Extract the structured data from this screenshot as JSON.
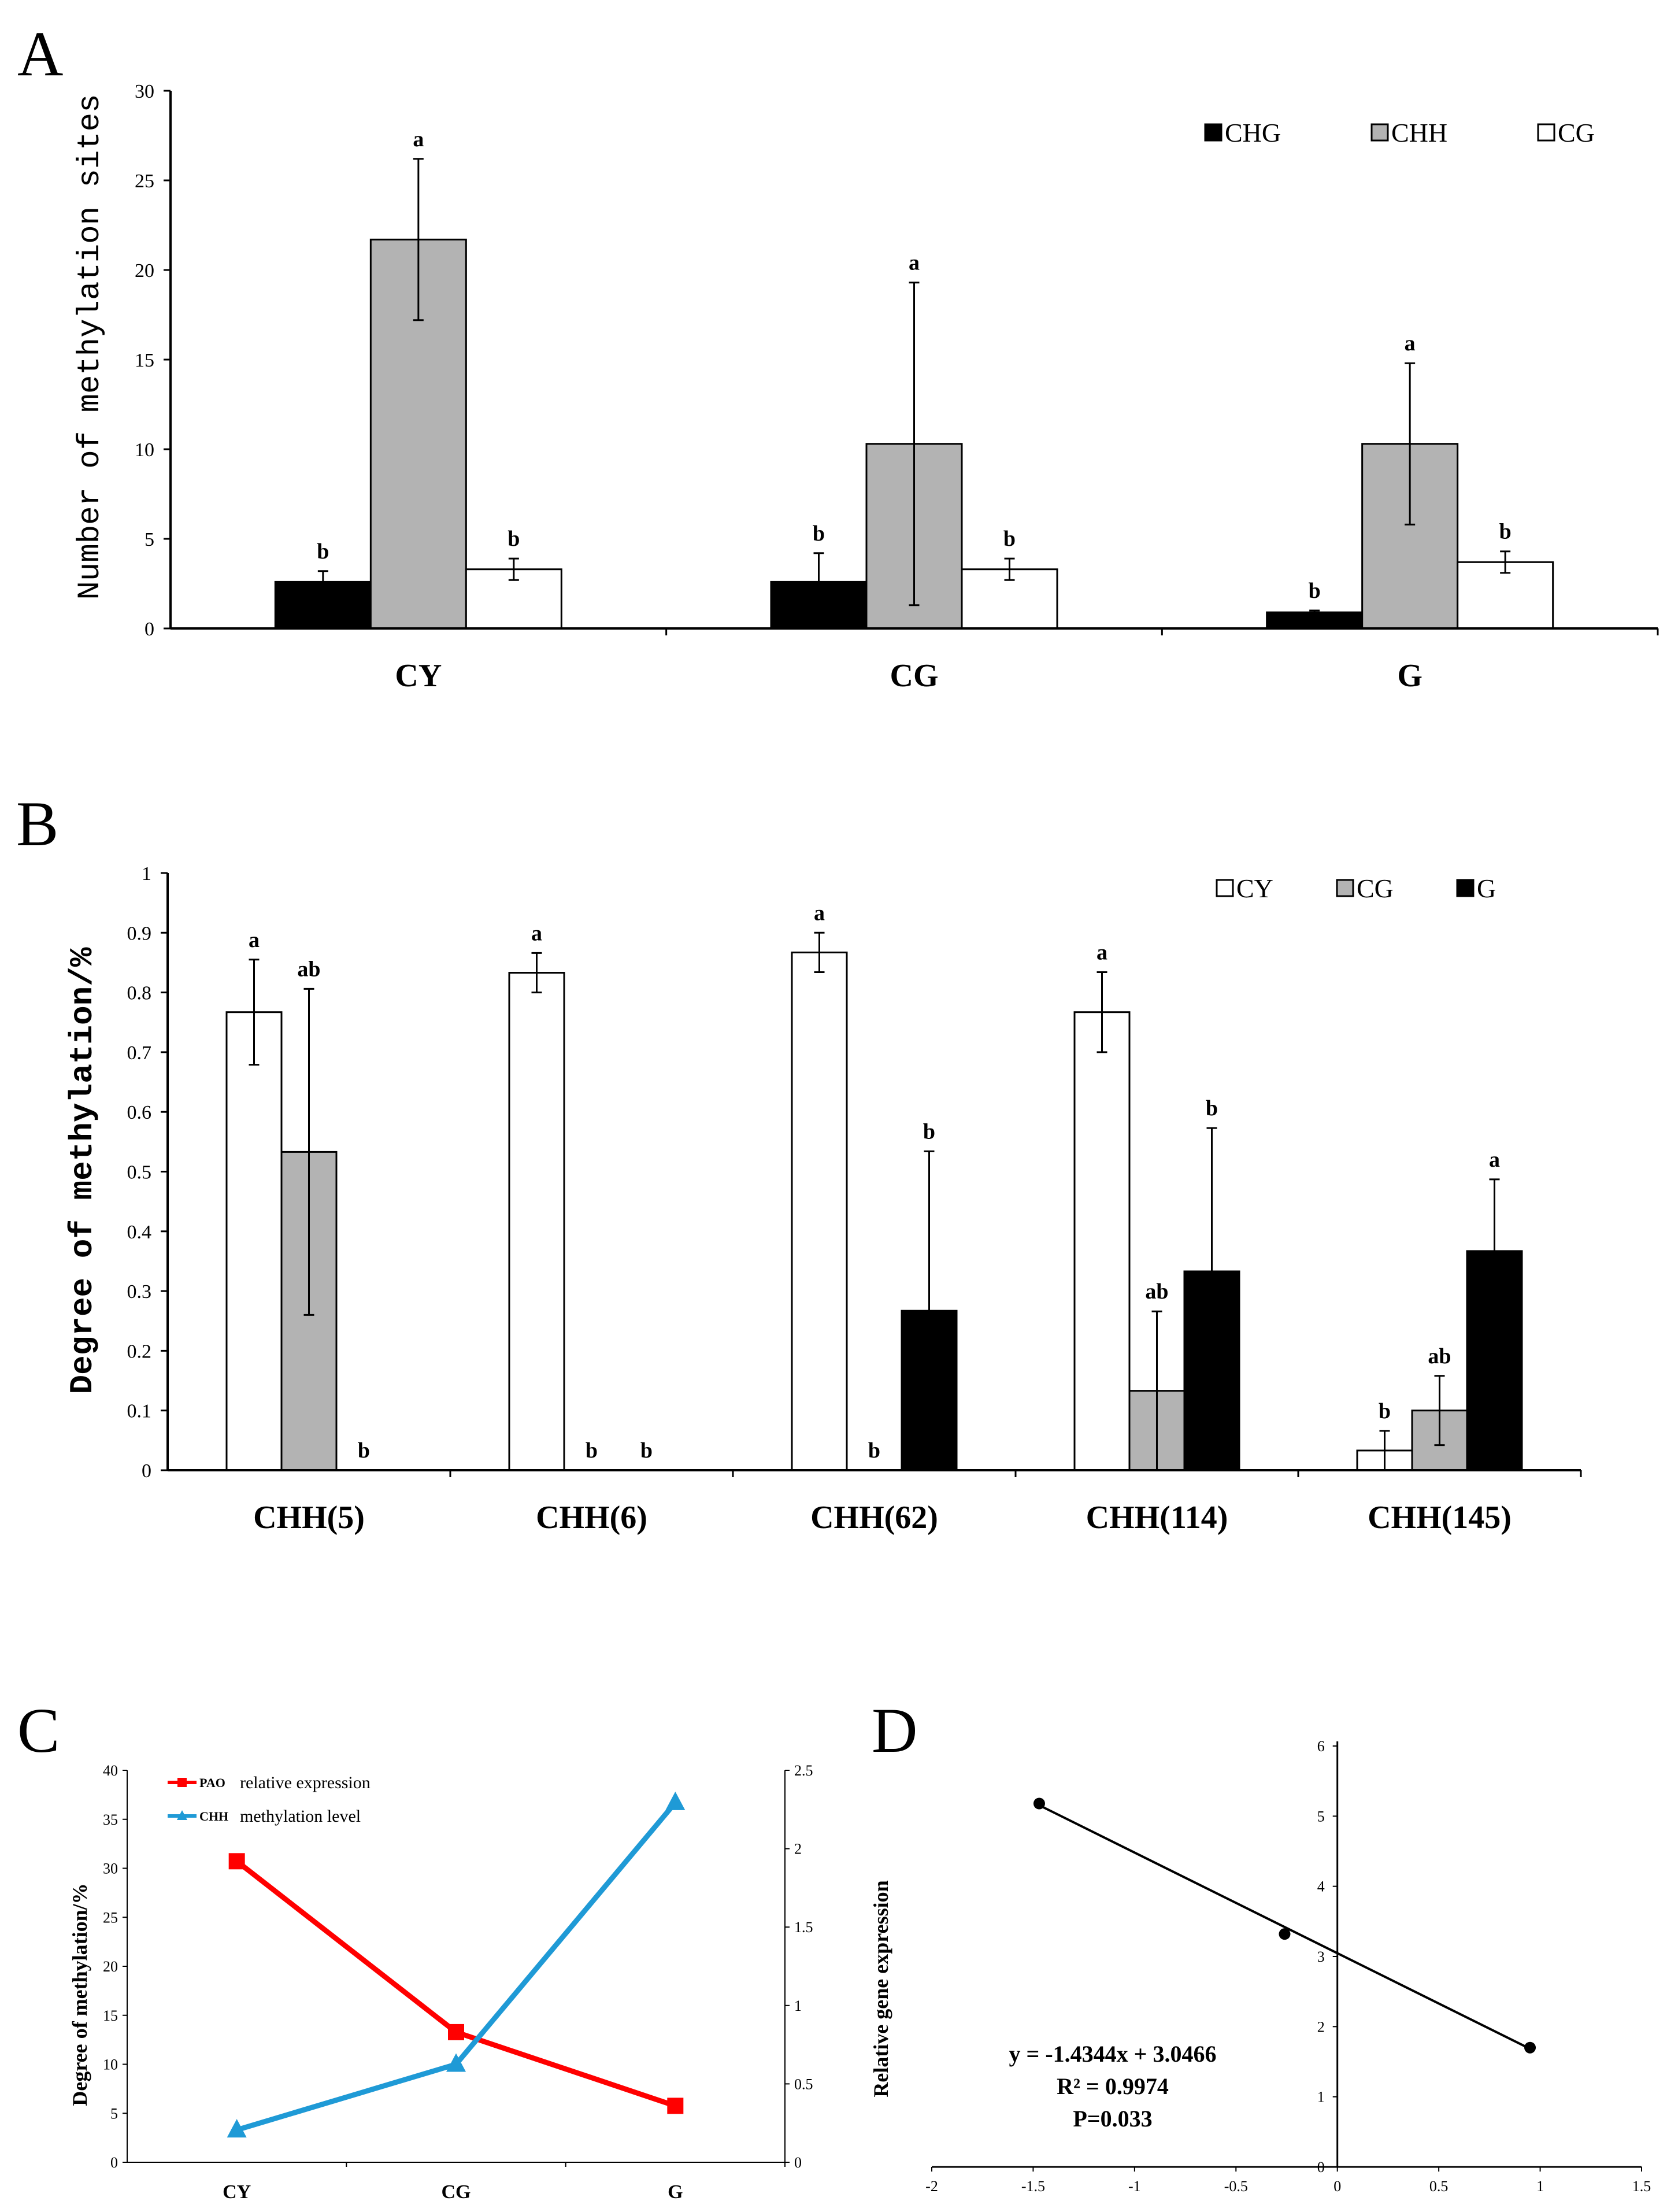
{
  "panels": {
    "a": {
      "label": "A"
    },
    "b": {
      "label": "B"
    },
    "c": {
      "label": "C"
    },
    "d": {
      "label": "D"
    }
  },
  "chart_data": [
    {
      "id": "A",
      "type": "bar",
      "categories": [
        "CY",
        "CG",
        "G"
      ],
      "ylabel": "Number of methylation sites",
      "xlabel": "",
      "ylim": [
        0,
        30
      ],
      "yticks": [
        0,
        5,
        10,
        15,
        20,
        25,
        30
      ],
      "legend_position": "top-right",
      "series": [
        {
          "name": "CHG",
          "color": "#000000",
          "values": [
            2.6,
            2.6,
            0.9
          ],
          "errors": [
            0.6,
            1.6,
            0.1
          ],
          "letters": [
            "b",
            "b",
            "b"
          ]
        },
        {
          "name": "CHH",
          "color": "#b3b3b3",
          "values": [
            21.7,
            10.3,
            10.3
          ],
          "errors": [
            4.5,
            9.0,
            4.5
          ],
          "letters": [
            "a",
            "a",
            "a"
          ]
        },
        {
          "name": "CG",
          "color": "#ffffff",
          "values": [
            3.3,
            3.3,
            3.7
          ],
          "errors": [
            0.6,
            0.6,
            0.6
          ],
          "letters": [
            "b",
            "b",
            "b"
          ]
        }
      ]
    },
    {
      "id": "B",
      "type": "bar",
      "categories": [
        "CHH(5)",
        "CHH(6)",
        "CHH(62)",
        "CHH(114)",
        "CHH(145)"
      ],
      "ylabel": "Degree of methylation/%",
      "xlabel": "",
      "ylim": [
        0,
        1
      ],
      "yticks": [
        "0",
        "0.1",
        "0.2",
        "0.3",
        "0.4",
        "0.5",
        "0.6",
        "0.7",
        "0.8",
        "0.9",
        "1"
      ],
      "legend_position": "top-right",
      "series": [
        {
          "name": "CY",
          "color": "#ffffff",
          "values": [
            0.767,
            0.833,
            0.867,
            0.767,
            0.033
          ],
          "errors": [
            0.088,
            0.033,
            0.033,
            0.067,
            0.033
          ],
          "letters": [
            "a",
            "a",
            "a",
            "a",
            "b"
          ]
        },
        {
          "name": "CG",
          "color": "#b3b3b3",
          "values": [
            0.533,
            0,
            0,
            0.133,
            0.1
          ],
          "errors": [
            0.273,
            0,
            0,
            0.133,
            0.058
          ],
          "letters": [
            "ab",
            "b",
            "b",
            "ab",
            "ab"
          ]
        },
        {
          "name": "G",
          "color": "#000000",
          "values": [
            0,
            0,
            0.267,
            0.333,
            0.367
          ],
          "errors": [
            0,
            0,
            0.267,
            0.24,
            0.12
          ],
          "letters": [
            "b",
            "b",
            "b",
            "b",
            "a"
          ]
        }
      ]
    },
    {
      "id": "C",
      "type": "line",
      "categories": [
        "CY",
        "CG",
        "G"
      ],
      "ylabel": "Degree of methylation/%",
      "ylim": [
        0,
        40
      ],
      "yticks": [
        0,
        5,
        10,
        15,
        20,
        25,
        30,
        35,
        40
      ],
      "y2lim": [
        0,
        2.5
      ],
      "y2ticks": [
        "0",
        "0.5",
        "1",
        "1.5",
        "2",
        "2.5"
      ],
      "legend_position": "top-left",
      "series": [
        {
          "name_bold": "PAO",
          "name_rest": "relative expression",
          "color": "#ff0000",
          "marker": "square",
          "axis": "right",
          "values": [
            1.92,
            0.83,
            0.36
          ]
        },
        {
          "name_bold": "CHH",
          "name_rest": "methylation level",
          "color": "#1f9ad6",
          "marker": "triangle",
          "axis": "left",
          "values": [
            3.3,
            10,
            36.7
          ]
        }
      ]
    },
    {
      "id": "D",
      "type": "scatter",
      "ylabel": "Relative gene expression",
      "xlim": [
        -2,
        1.5
      ],
      "ylim": [
        0,
        6
      ],
      "xticks": [
        "-2",
        "-1.5",
        "-1",
        "-0.5",
        "0",
        "0.5",
        "1",
        "1.5"
      ],
      "yticks": [
        "0",
        "1",
        "2",
        "3",
        "4",
        "5",
        "6"
      ],
      "points": [
        {
          "x": -1.47,
          "y": 5.18
        },
        {
          "x": -0.26,
          "y": 3.32
        },
        {
          "x": 0.95,
          "y": 1.7
        }
      ],
      "trendline": {
        "slope": -1.4344,
        "intercept": 3.0466
      },
      "annotations": [
        "y = -1.4344x + 3.0466",
        "R² = 0.9974",
        "P=0.033"
      ]
    }
  ]
}
